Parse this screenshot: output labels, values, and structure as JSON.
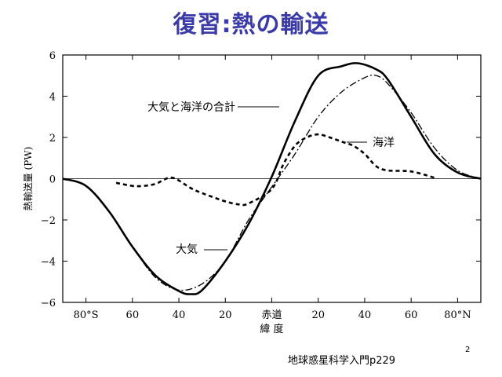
{
  "slide": {
    "title": "復習:熱の輸送",
    "source": "地球惑星科学入門p229",
    "page_number": "2"
  },
  "chart_data": {
    "type": "line",
    "ylabel": "熱輸送量 (PW)",
    "xlabel": "緯 度",
    "x_ticks": [
      {
        "value": -80,
        "label": "80°S"
      },
      {
        "value": -60,
        "label": "60"
      },
      {
        "value": -40,
        "label": "40"
      },
      {
        "value": -20,
        "label": "20"
      },
      {
        "value": 0,
        "label": "赤道"
      },
      {
        "value": 20,
        "label": "20"
      },
      {
        "value": 40,
        "label": "40"
      },
      {
        "value": 60,
        "label": "60"
      },
      {
        "value": 80,
        "label": "80°N"
      }
    ],
    "y_ticks": [
      -6,
      -4,
      -2,
      0,
      2,
      4,
      6
    ],
    "xlim": [
      -90,
      90
    ],
    "ylim": [
      -6,
      6
    ],
    "series": [
      {
        "name": "大気と海洋の合計",
        "style": "solid",
        "color": "#000000",
        "x": [
          -90,
          -80,
          -70,
          -60,
          -50,
          -40,
          -35,
          -30,
          -20,
          -10,
          0,
          10,
          20,
          30,
          37,
          45,
          50,
          60,
          70,
          80,
          90
        ],
        "y": [
          0,
          -0.35,
          -1.6,
          -3.3,
          -4.7,
          -5.45,
          -5.6,
          -5.4,
          -4.0,
          -2.2,
          0.1,
          2.8,
          5.0,
          5.45,
          5.6,
          5.3,
          4.8,
          3.0,
          1.2,
          0.3,
          0
        ]
      },
      {
        "name": "海洋",
        "style": "dashed",
        "color": "#000000",
        "x": [
          -67,
          -60,
          -55,
          -50,
          -43,
          -35,
          -30,
          -20,
          -14,
          -10,
          0,
          5,
          10,
          15,
          20,
          25,
          30,
          35,
          40,
          45,
          50,
          60,
          70
        ],
        "y": [
          -0.2,
          -0.35,
          -0.35,
          -0.25,
          0.05,
          -0.45,
          -0.7,
          -1.1,
          -1.25,
          -1.2,
          -0.5,
          0.7,
          1.6,
          2.0,
          2.15,
          2.0,
          1.8,
          1.6,
          1.2,
          0.6,
          0.4,
          0.35,
          0.05
        ]
      },
      {
        "name": "大気",
        "style": "dashdot",
        "color": "#000000",
        "x": [
          -90,
          -80,
          -70,
          -60,
          -50,
          -40,
          -30,
          -20,
          -10,
          0,
          10,
          20,
          30,
          40,
          45,
          50,
          60,
          70,
          80,
          90
        ],
        "y": [
          0,
          -0.35,
          -1.6,
          -3.3,
          -4.8,
          -5.4,
          -5.1,
          -4.0,
          -2.0,
          -0.4,
          1.2,
          3.0,
          4.2,
          4.9,
          5.0,
          4.6,
          3.2,
          1.5,
          0.4,
          0
        ]
      }
    ],
    "annotations": [
      {
        "text": "大気と海洋の合計"
      },
      {
        "text": "海洋"
      },
      {
        "text": "大気"
      }
    ],
    "grid": false
  }
}
